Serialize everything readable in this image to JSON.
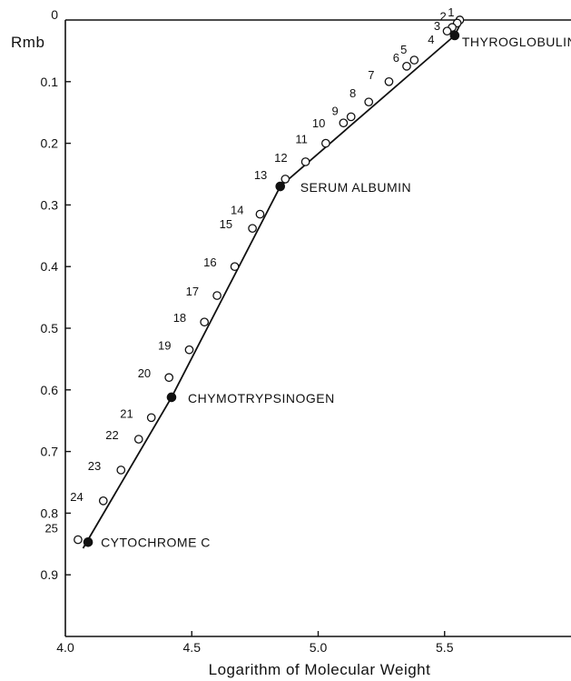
{
  "chart_data": {
    "type": "scatter",
    "xlabel": "Logarithm of Molecular Weight",
    "ylabel": "Rmb",
    "xlim": [
      4.0,
      6.0
    ],
    "ylim": [
      0,
      1.0
    ],
    "y_inverted": true,
    "x_ticks": [
      "4.0",
      "4.5",
      "5.0",
      "5.5"
    ],
    "x_tick_values": [
      4.0,
      4.5,
      5.0,
      5.5
    ],
    "y_ticks": [
      "0",
      "0.1",
      "0.2",
      "0.3",
      "0.4",
      "0.5",
      "0.6",
      "0.7",
      "0.8",
      "0.9"
    ],
    "y_tick_values": [
      0,
      0.1,
      0.2,
      0.3,
      0.4,
      0.5,
      0.6,
      0.7,
      0.8,
      0.9
    ],
    "grid": false,
    "series": [
      {
        "name": "",
        "marker": "open-circle",
        "points": [
          {
            "label": "1",
            "x": 5.56,
            "y": 0.0
          },
          {
            "label": "2",
            "x": 5.55,
            "y": 0.005
          },
          {
            "label": "3",
            "x": 5.53,
            "y": 0.012
          },
          {
            "label": "4",
            "x": 5.51,
            "y": 0.018
          },
          {
            "label": "5",
            "x": 5.38,
            "y": 0.065
          },
          {
            "label": "6",
            "x": 5.35,
            "y": 0.075
          },
          {
            "label": "7",
            "x": 5.28,
            "y": 0.1
          },
          {
            "label": "8",
            "x": 5.2,
            "y": 0.133
          },
          {
            "label": "9",
            "x": 5.13,
            "y": 0.157
          },
          {
            "label": "10",
            "x": 5.1,
            "y": 0.167
          },
          {
            "label": "11",
            "x": 5.03,
            "y": 0.2
          },
          {
            "label": "12",
            "x": 4.95,
            "y": 0.23
          },
          {
            "label": "13",
            "x": 4.87,
            "y": 0.258
          },
          {
            "label": "14",
            "x": 4.77,
            "y": 0.315
          },
          {
            "label": "15",
            "x": 4.74,
            "y": 0.338
          },
          {
            "label": "16",
            "x": 4.67,
            "y": 0.4
          },
          {
            "label": "17",
            "x": 4.6,
            "y": 0.447
          },
          {
            "label": "18",
            "x": 4.55,
            "y": 0.49
          },
          {
            "label": "19",
            "x": 4.49,
            "y": 0.535
          },
          {
            "label": "20",
            "x": 4.41,
            "y": 0.58
          },
          {
            "label": "21",
            "x": 4.34,
            "y": 0.645
          },
          {
            "label": "22",
            "x": 4.29,
            "y": 0.68
          },
          {
            "label": "23",
            "x": 4.22,
            "y": 0.73
          },
          {
            "label": "24",
            "x": 4.15,
            "y": 0.78
          },
          {
            "label": "25",
            "x": 4.05,
            "y": 0.843
          }
        ]
      },
      {
        "name": "",
        "marker": "filled-circle",
        "points": [
          {
            "label": "THYROGLOBULIN",
            "x": 5.54,
            "y": 0.025
          },
          {
            "label": "SERUM ALBUMIN",
            "x": 4.85,
            "y": 0.27
          },
          {
            "label": "CHYMOTRYPSINOGEN",
            "x": 4.42,
            "y": 0.612
          },
          {
            "label": "CYTOCHROME C",
            "x": 4.09,
            "y": 0.847
          }
        ]
      }
    ],
    "fit_line": [
      {
        "x": 4.07,
        "y": 0.857
      },
      {
        "x": 4.42,
        "y": 0.612
      },
      {
        "x": 4.85,
        "y": 0.27
      },
      {
        "x": 5.54,
        "y": 0.025
      },
      {
        "x": 5.57,
        "y": 0.0
      }
    ]
  }
}
